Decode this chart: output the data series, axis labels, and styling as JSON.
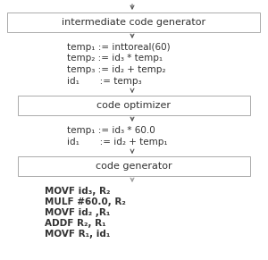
{
  "bg_color": "#ffffff",
  "box_bg": "#ffffff",
  "box_edge": "#aaaaaa",
  "arrow_color": "#555555",
  "arrow_color2": "#999999",
  "text_color": "#333333",
  "box1_label": "intermediate code generator",
  "box2_label": "code optimizer",
  "box3_label": "code generator",
  "code1": [
    "temp₁ := inttoreal(60)",
    "temp₂ := id₃ * temp₁",
    "temp₃ := id₂ + temp₂",
    "id₁       := temp₃"
  ],
  "code2": [
    "temp₁ := id₃ * 60.0",
    "id₁       := id₂ + temp₁"
  ],
  "code3": [
    "MOVF id₃, R₂",
    "MULF #60.0, R₂",
    "MOVF id₂ ,R₁",
    "ADDF R₂, R₁",
    "MOVF R₁, id₁"
  ],
  "font_size_box": 8.0,
  "font_size_code": 7.5,
  "font_size_code3": 7.5
}
